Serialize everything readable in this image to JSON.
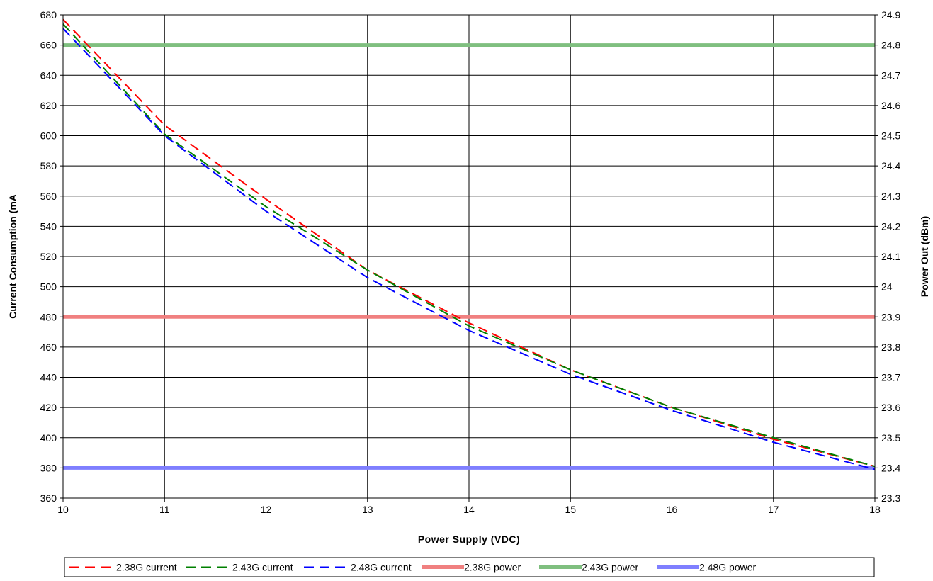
{
  "chart_data": {
    "type": "line",
    "title": "",
    "xlabel": "Power Supply (VDC)",
    "ylabel": "Current Consumption (mA",
    "y2label": "Power Out (dBm)",
    "xlim": [
      10,
      18
    ],
    "ylim": [
      360,
      680
    ],
    "y2lim": [
      23.3,
      24.9
    ],
    "grid": true,
    "legend_position": "bottom",
    "x_ticks": [
      "10",
      "11",
      "12",
      "13",
      "14",
      "15",
      "16",
      "17",
      "18"
    ],
    "y_ticks": [
      "360",
      "380",
      "400",
      "420",
      "440",
      "460",
      "480",
      "500",
      "520",
      "540",
      "560",
      "580",
      "600",
      "620",
      "640",
      "660",
      "680"
    ],
    "y2_ticks": [
      "23.3",
      "23.4",
      "23.5",
      "23.6",
      "23.7",
      "23.8",
      "23.9",
      "24",
      "24.1",
      "24.2",
      "24.3",
      "24.4",
      "24.5",
      "24.6",
      "24.7",
      "24.8",
      "24.9"
    ],
    "series": [
      {
        "name": "2.38G current",
        "axis": "left",
        "style": "dashed",
        "color": "#ff0000",
        "x": [
          10,
          11,
          12,
          13,
          14,
          15,
          16,
          17,
          18
        ],
        "y": [
          677,
          607,
          558,
          511,
          476,
          445,
          420,
          399,
          381
        ]
      },
      {
        "name": "2.43G current",
        "axis": "left",
        "style": "dashed",
        "color": "#008000",
        "x": [
          10,
          11,
          12,
          13,
          14,
          15,
          16,
          17,
          18
        ],
        "y": [
          674,
          601,
          553,
          511,
          474,
          445,
          420,
          400,
          381
        ]
      },
      {
        "name": "2.48G current",
        "axis": "left",
        "style": "dashed",
        "color": "#0000ff",
        "x": [
          10,
          11,
          12,
          13,
          14,
          15,
          16,
          17,
          18
        ],
        "y": [
          671,
          600,
          550,
          506,
          471,
          442,
          418,
          397,
          379
        ]
      },
      {
        "name": "2.38G power",
        "axis": "right",
        "style": "solid",
        "color": "#f08080",
        "x": [
          10,
          18
        ],
        "y": [
          23.9,
          23.9
        ]
      },
      {
        "name": "2.43G power",
        "axis": "right",
        "style": "solid",
        "color": "#7fbf7f",
        "x": [
          10,
          18
        ],
        "y": [
          24.8,
          24.8
        ]
      },
      {
        "name": "2.48G power",
        "axis": "right",
        "style": "solid",
        "color": "#7f7fff",
        "x": [
          10,
          18
        ],
        "y": [
          23.4,
          23.4
        ]
      }
    ]
  }
}
